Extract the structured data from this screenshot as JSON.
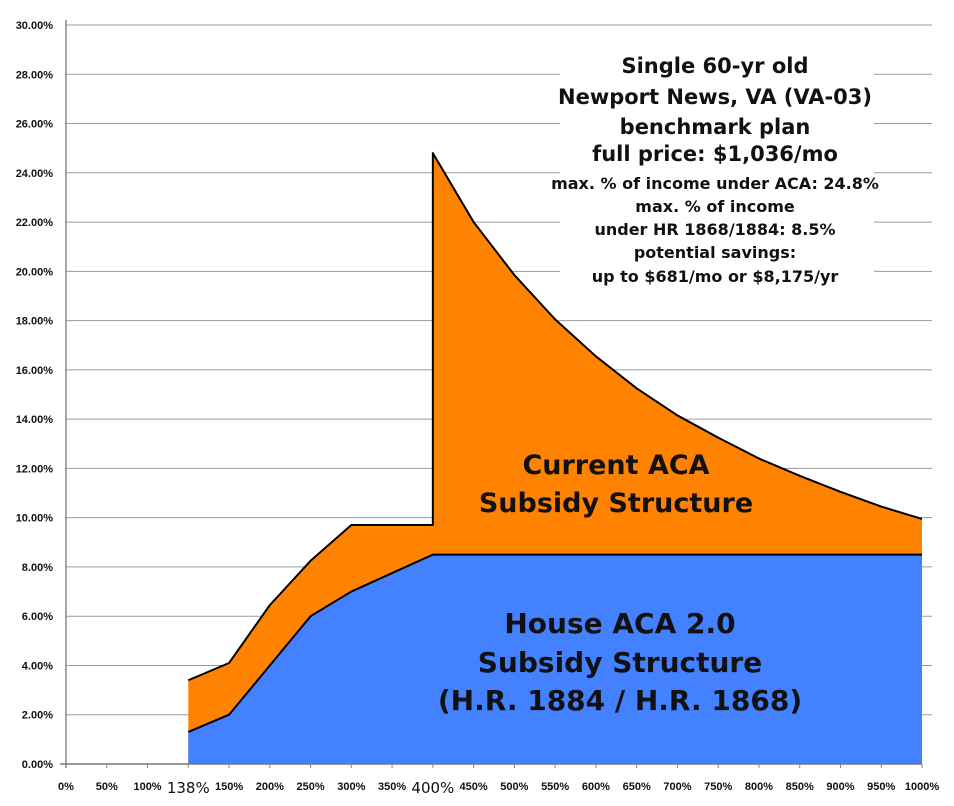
{
  "chart_data": {
    "type": "area",
    "title": "",
    "xlabel": "",
    "ylabel": "",
    "ylim": [
      0,
      30
    ],
    "y_ticks": [
      "0.00%",
      "2.00%",
      "4.00%",
      "6.00%",
      "8.00%",
      "10.00%",
      "12.00%",
      "14.00%",
      "16.00%",
      "18.00%",
      "20.00%",
      "22.00%",
      "24.00%",
      "26.00%",
      "28.00%",
      "30.00%"
    ],
    "categories": [
      "0%",
      "50%",
      "100%",
      "138%",
      "150%",
      "200%",
      "250%",
      "300%",
      "350%",
      "400%",
      "450%",
      "500%",
      "550%",
      "600%",
      "650%",
      "700%",
      "750%",
      "800%",
      "850%",
      "900%",
      "950%",
      "1000%"
    ],
    "emphasized_categories": [
      "138%",
      "400%"
    ],
    "grid": true,
    "stacked": false,
    "series": [
      {
        "color": "#FF8200",
        "points": [
          [
            "138%",
            3.4
          ],
          [
            "150%",
            4.1
          ],
          [
            "200%",
            6.45
          ],
          [
            "250%",
            8.25
          ],
          [
            "300%",
            9.7
          ],
          [
            "350%",
            9.7
          ],
          [
            "400%",
            9.7
          ],
          [
            "400%",
            24.8
          ],
          [
            "450%",
            22.0
          ],
          [
            "500%",
            19.85
          ],
          [
            "550%",
            18.05
          ],
          [
            "600%",
            16.55
          ],
          [
            "650%",
            15.25
          ],
          [
            "700%",
            14.15
          ],
          [
            "750%",
            13.25
          ],
          [
            "800%",
            12.4
          ],
          [
            "850%",
            11.7
          ],
          [
            "900%",
            11.05
          ],
          [
            "950%",
            10.45
          ],
          [
            "1000%",
            9.95
          ]
        ]
      },
      {
        "color": "#4381FF",
        "points": [
          [
            "138%",
            1.3
          ],
          [
            "150%",
            2.0
          ],
          [
            "200%",
            4.0
          ],
          [
            "250%",
            6.0
          ],
          [
            "300%",
            7.0
          ],
          [
            "350%",
            7.75
          ],
          [
            "400%",
            8.5
          ],
          [
            "450%",
            8.5
          ],
          [
            "500%",
            8.5
          ],
          [
            "550%",
            8.5
          ],
          [
            "600%",
            8.5
          ],
          [
            "650%",
            8.5
          ],
          [
            "700%",
            8.5
          ],
          [
            "750%",
            8.5
          ],
          [
            "800%",
            8.5
          ],
          [
            "850%",
            8.5
          ],
          [
            "900%",
            8.5
          ],
          [
            "950%",
            8.5
          ],
          [
            "1000%",
            8.5
          ]
        ]
      }
    ],
    "annotations": {
      "info_box": [
        "Single 60-yr old",
        "Newport News, VA (VA-03)",
        "benchmark plan",
        "full price: $1,036/mo",
        "max. % of income under ACA: 24.8%",
        "max. % of income",
        "under HR 1868/1884: 8.5%",
        "potential savings:",
        "up to $681/mo or $8,175/yr"
      ],
      "current_label": [
        "Current ACA",
        "Subsidy Structure"
      ],
      "house_label": [
        "House ACA 2.0",
        "Subsidy Structure",
        "(H.R. 1884 / H.R. 1868)"
      ]
    }
  }
}
